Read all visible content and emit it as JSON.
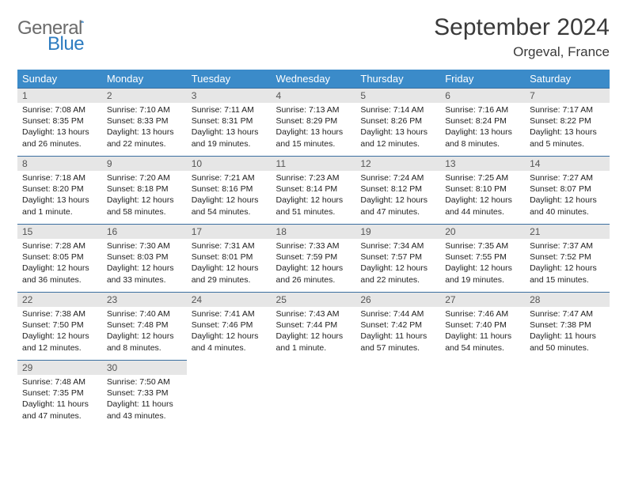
{
  "logo": {
    "text1": "General",
    "text2": "Blue"
  },
  "title": "September 2024",
  "location": "Orgeval, France",
  "header_bg": "#3b8bc9",
  "header_fg": "#ffffff",
  "row_border": "#3b6fa0",
  "daynum_bg": "#e6e6e6",
  "weekdays": [
    "Sunday",
    "Monday",
    "Tuesday",
    "Wednesday",
    "Thursday",
    "Friday",
    "Saturday"
  ],
  "weeks": [
    [
      {
        "n": "1",
        "sr": "7:08 AM",
        "ss": "8:35 PM",
        "dl": "13 hours and 26 minutes."
      },
      {
        "n": "2",
        "sr": "7:10 AM",
        "ss": "8:33 PM",
        "dl": "13 hours and 22 minutes."
      },
      {
        "n": "3",
        "sr": "7:11 AM",
        "ss": "8:31 PM",
        "dl": "13 hours and 19 minutes."
      },
      {
        "n": "4",
        "sr": "7:13 AM",
        "ss": "8:29 PM",
        "dl": "13 hours and 15 minutes."
      },
      {
        "n": "5",
        "sr": "7:14 AM",
        "ss": "8:26 PM",
        "dl": "13 hours and 12 minutes."
      },
      {
        "n": "6",
        "sr": "7:16 AM",
        "ss": "8:24 PM",
        "dl": "13 hours and 8 minutes."
      },
      {
        "n": "7",
        "sr": "7:17 AM",
        "ss": "8:22 PM",
        "dl": "13 hours and 5 minutes."
      }
    ],
    [
      {
        "n": "8",
        "sr": "7:18 AM",
        "ss": "8:20 PM",
        "dl": "13 hours and 1 minute."
      },
      {
        "n": "9",
        "sr": "7:20 AM",
        "ss": "8:18 PM",
        "dl": "12 hours and 58 minutes."
      },
      {
        "n": "10",
        "sr": "7:21 AM",
        "ss": "8:16 PM",
        "dl": "12 hours and 54 minutes."
      },
      {
        "n": "11",
        "sr": "7:23 AM",
        "ss": "8:14 PM",
        "dl": "12 hours and 51 minutes."
      },
      {
        "n": "12",
        "sr": "7:24 AM",
        "ss": "8:12 PM",
        "dl": "12 hours and 47 minutes."
      },
      {
        "n": "13",
        "sr": "7:25 AM",
        "ss": "8:10 PM",
        "dl": "12 hours and 44 minutes."
      },
      {
        "n": "14",
        "sr": "7:27 AM",
        "ss": "8:07 PM",
        "dl": "12 hours and 40 minutes."
      }
    ],
    [
      {
        "n": "15",
        "sr": "7:28 AM",
        "ss": "8:05 PM",
        "dl": "12 hours and 36 minutes."
      },
      {
        "n": "16",
        "sr": "7:30 AM",
        "ss": "8:03 PM",
        "dl": "12 hours and 33 minutes."
      },
      {
        "n": "17",
        "sr": "7:31 AM",
        "ss": "8:01 PM",
        "dl": "12 hours and 29 minutes."
      },
      {
        "n": "18",
        "sr": "7:33 AM",
        "ss": "7:59 PM",
        "dl": "12 hours and 26 minutes."
      },
      {
        "n": "19",
        "sr": "7:34 AM",
        "ss": "7:57 PM",
        "dl": "12 hours and 22 minutes."
      },
      {
        "n": "20",
        "sr": "7:35 AM",
        "ss": "7:55 PM",
        "dl": "12 hours and 19 minutes."
      },
      {
        "n": "21",
        "sr": "7:37 AM",
        "ss": "7:52 PM",
        "dl": "12 hours and 15 minutes."
      }
    ],
    [
      {
        "n": "22",
        "sr": "7:38 AM",
        "ss": "7:50 PM",
        "dl": "12 hours and 12 minutes."
      },
      {
        "n": "23",
        "sr": "7:40 AM",
        "ss": "7:48 PM",
        "dl": "12 hours and 8 minutes."
      },
      {
        "n": "24",
        "sr": "7:41 AM",
        "ss": "7:46 PM",
        "dl": "12 hours and 4 minutes."
      },
      {
        "n": "25",
        "sr": "7:43 AM",
        "ss": "7:44 PM",
        "dl": "12 hours and 1 minute."
      },
      {
        "n": "26",
        "sr": "7:44 AM",
        "ss": "7:42 PM",
        "dl": "11 hours and 57 minutes."
      },
      {
        "n": "27",
        "sr": "7:46 AM",
        "ss": "7:40 PM",
        "dl": "11 hours and 54 minutes."
      },
      {
        "n": "28",
        "sr": "7:47 AM",
        "ss": "7:38 PM",
        "dl": "11 hours and 50 minutes."
      }
    ],
    [
      {
        "n": "29",
        "sr": "7:48 AM",
        "ss": "7:35 PM",
        "dl": "11 hours and 47 minutes."
      },
      {
        "n": "30",
        "sr": "7:50 AM",
        "ss": "7:33 PM",
        "dl": "11 hours and 43 minutes."
      },
      null,
      null,
      null,
      null,
      null
    ]
  ],
  "labels": {
    "sunrise": "Sunrise: ",
    "sunset": "Sunset: ",
    "daylight": "Daylight: "
  }
}
